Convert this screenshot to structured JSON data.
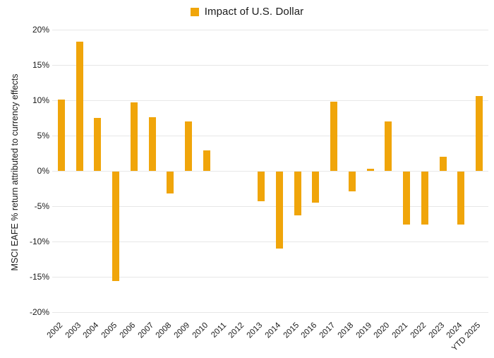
{
  "legend": {
    "label": "Impact of U.S. Dollar",
    "swatch_color": "#F0A50A"
  },
  "chart_data": {
    "type": "bar",
    "title": "Impact of U.S. Dollar",
    "ylabel": "MSCI EAFE % return attributed to currency effects",
    "xlabel": "",
    "categories": [
      "2002",
      "2003",
      "2004",
      "2005",
      "2006",
      "2007",
      "2008",
      "2009",
      "2010",
      "2011",
      "2012",
      "2013",
      "2014",
      "2015",
      "2016",
      "2017",
      "2018",
      "2019",
      "2020",
      "2021",
      "2022",
      "2023",
      "2024",
      "YTD 2025"
    ],
    "values": [
      10.1,
      18.3,
      7.5,
      -15.5,
      9.7,
      7.6,
      -3.1,
      7.0,
      2.9,
      0.0,
      0.0,
      -4.2,
      -10.9,
      -6.2,
      -4.4,
      9.8,
      -2.8,
      0.3,
      7.0,
      -7.5,
      -7.5,
      2.0,
      -7.5,
      10.6
    ],
    "ylim": [
      -20,
      20
    ],
    "ytick_values": [
      20,
      15,
      10,
      5,
      0,
      -5,
      -10,
      -15,
      -20
    ],
    "ytick_labels": [
      "20%",
      "15%",
      "10%",
      "5%",
      "0%",
      "-5%",
      "-10%",
      "-15%",
      "-20%"
    ],
    "grid": true,
    "legend_position": "top-center",
    "bar_color": "#F0A50A"
  },
  "colors": {
    "bar": "#F0A50A",
    "gridline": "#e7e7e7",
    "text": "#1a1a1a",
    "background": "#ffffff"
  }
}
